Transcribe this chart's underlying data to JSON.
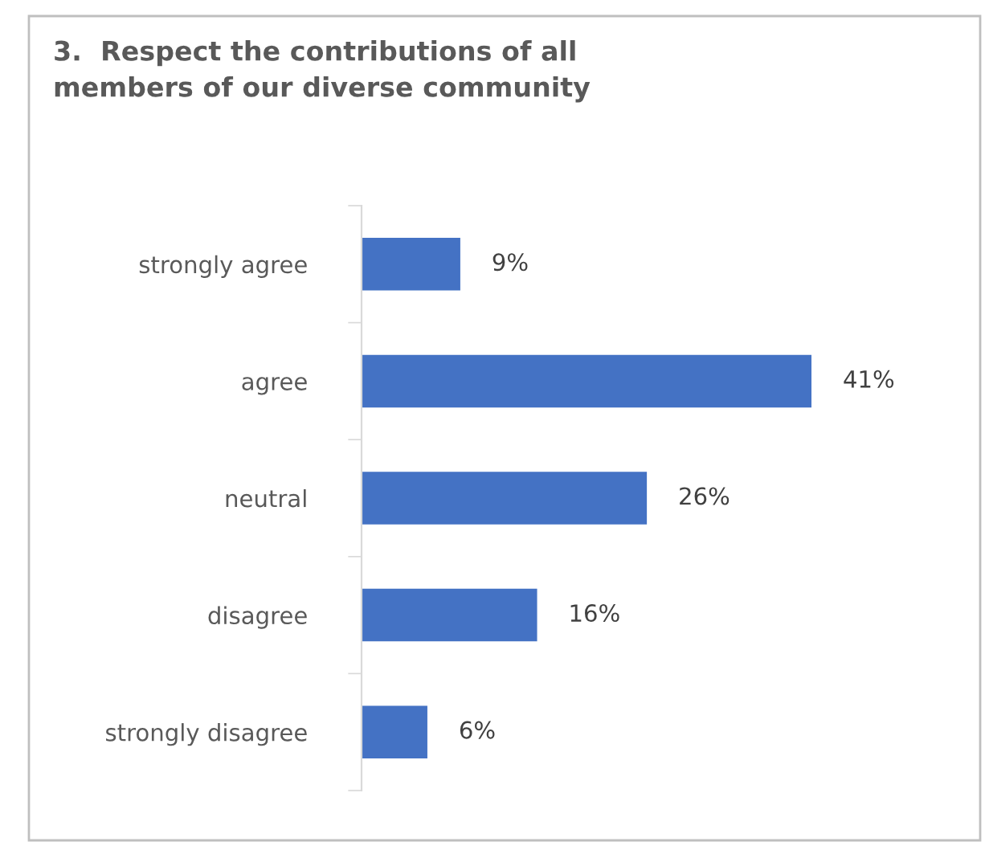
{
  "chart_data": {
    "type": "bar",
    "orientation": "horizontal",
    "title": "3.  Respect the contributions of all\nmembers of our diverse community",
    "categories": [
      "strongly agree",
      "agree",
      "neutral",
      "disagree",
      "strongly disagree"
    ],
    "values": [
      9,
      41,
      26,
      16,
      6
    ],
    "color": "#4472c4",
    "value_labels": [
      "9%",
      "41%",
      "26%",
      "16%",
      "6%"
    ],
    "grid": false,
    "legend": false
  }
}
